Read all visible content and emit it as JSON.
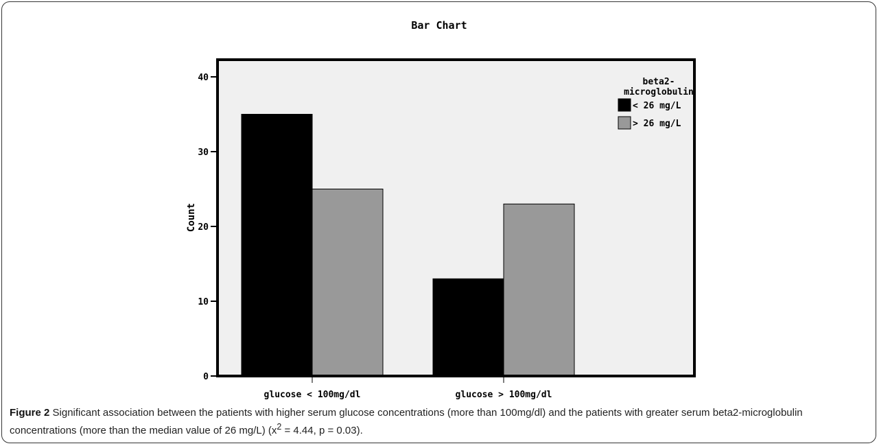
{
  "chart_data": {
    "type": "bar",
    "title": "Bar Chart",
    "xlabel": "",
    "ylabel": "Count",
    "categories": [
      "glucose < 100mg/dl",
      "glucose > 100mg/dl"
    ],
    "series": [
      {
        "name": "< 26 mg/L",
        "values": [
          35,
          13
        ],
        "color": "#000000"
      },
      {
        "name": "> 26 mg/L",
        "values": [
          25,
          23
        ],
        "color": "#999999"
      }
    ],
    "ylim": [
      0,
      42
    ],
    "yticks": [
      0,
      10,
      20,
      30,
      40
    ],
    "ytick_labels": [
      "0",
      "10",
      "20",
      "30",
      "40"
    ],
    "legend": {
      "title": "beta2-microglobulin",
      "title_lines": [
        "beta2-",
        "microglobulin"
      ],
      "placement": "right"
    },
    "plot_background": "#f0f0f0",
    "grid": false
  },
  "caption": {
    "label": "Figure 2",
    "text": " Significant association between the patients with higher serum glucose concentrations (more than 100mg/dl) and the patients with greater serum beta2-microglobulin concentrations (more than the median value of 26 mg/L) (x",
    "superscript": "2",
    "text_end": " = 4.44, p = 0.03)."
  }
}
